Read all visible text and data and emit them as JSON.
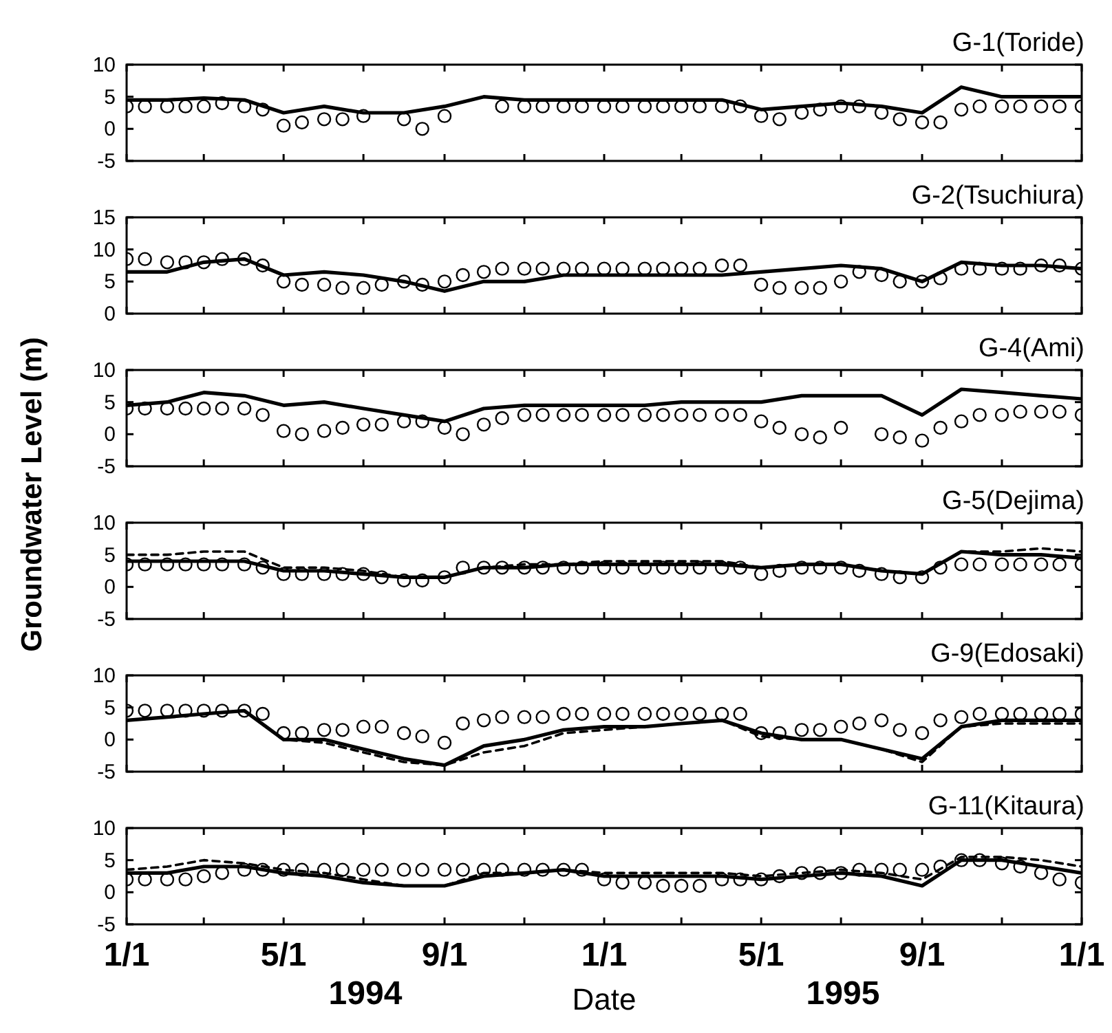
{
  "chart_data": [
    {
      "type": "line",
      "title": "G-1(Toride)",
      "xlim": [
        "1994-01-01",
        "1996-01-01"
      ],
      "ylim": [
        -5,
        10
      ],
      "yticks": [
        10,
        5,
        0,
        -5
      ],
      "tick_labels": "y",
      "xticks": [
        {
          "value": "1994-01-01",
          "label": null
        },
        {
          "value": "1994-03-01",
          "label": null
        },
        {
          "value": "1994-05-01",
          "label": null
        },
        {
          "value": "1994-07-01",
          "label": null
        },
        {
          "value": "1994-09-01",
          "label": null
        },
        {
          "value": "1994-11-01",
          "label": null
        },
        {
          "value": "1995-01-01",
          "label": null
        },
        {
          "value": "1995-03-01",
          "label": null
        },
        {
          "value": "1995-05-01",
          "label": null
        },
        {
          "value": "1995-07-01",
          "label": null
        },
        {
          "value": "1995-09-01",
          "label": null
        },
        {
          "value": "1995-11-01",
          "label": null
        },
        {
          "value": "1996-01-01",
          "label": null
        }
      ],
      "x": [
        "1994-01-01",
        "1994-01-15",
        "1994-02-01",
        "1994-02-15",
        "1994-03-01",
        "1994-03-15",
        "1994-04-01",
        "1994-04-15",
        "1994-05-01",
        "1994-05-15",
        "1994-06-01",
        "1994-06-15",
        "1994-07-01",
        "1994-08-01",
        "1994-08-15",
        "1994-09-01",
        "1994-10-15",
        "1994-11-01",
        "1994-11-15",
        "1994-12-01",
        "1994-12-15",
        "1995-01-01",
        "1995-01-15",
        "1995-02-01",
        "1995-02-15",
        "1995-03-01",
        "1995-03-15",
        "1995-04-01",
        "1995-04-15",
        "1995-05-01",
        "1995-05-15",
        "1995-06-01",
        "1995-06-15",
        "1995-07-01",
        "1995-07-15",
        "1995-08-01",
        "1995-08-15",
        "1995-09-01",
        "1995-09-15",
        "1995-10-01",
        "1995-10-15",
        "1995-11-01",
        "1995-11-15",
        "1995-12-01",
        "1995-12-15",
        "1996-01-01"
      ],
      "series": [
        {
          "type": "scatter",
          "marker": "circle",
          "color": "#000000",
          "values": [
            3.5,
            3.5,
            3.5,
            3.5,
            3.5,
            4,
            3.5,
            3,
            0.5,
            1,
            1.5,
            1.5,
            2,
            1.5,
            0,
            2,
            3.5,
            3.5,
            3.5,
            3.5,
            3.5,
            3.5,
            3.5,
            3.5,
            3.5,
            3.5,
            3.5,
            3.5,
            3.5,
            2,
            1.5,
            2.5,
            3,
            3.5,
            3.5,
            2.5,
            1.5,
            1,
            1,
            3,
            3.5,
            3.5,
            3.5,
            3.5,
            3.5,
            3.5
          ]
        },
        {
          "type": "line",
          "line_style": "solid",
          "color": "#000000",
          "x": [
            "1994-01-01",
            "1994-02-01",
            "1994-03-01",
            "1994-04-01",
            "1994-05-01",
            "1994-06-01",
            "1994-07-01",
            "1994-08-01",
            "1994-09-01",
            "1994-10-01",
            "1994-11-01",
            "1994-12-01",
            "1995-01-01",
            "1995-02-01",
            "1995-03-01",
            "1995-04-01",
            "1995-05-01",
            "1995-06-01",
            "1995-07-01",
            "1995-08-01",
            "1995-09-01",
            "1995-10-01",
            "1995-11-01",
            "1995-12-01",
            "1996-01-01"
          ],
          "values": [
            4.5,
            4.5,
            4.8,
            4.5,
            2.5,
            3.5,
            2.5,
            2.5,
            3.5,
            5,
            4.5,
            4.5,
            4.5,
            4.5,
            4.5,
            4.5,
            3,
            3.5,
            4,
            3.5,
            2.5,
            6.5,
            5,
            5,
            5
          ]
        }
      ]
    },
    {
      "type": "line",
      "title": "G-2(Tsuchiura)",
      "xlim": [
        "1994-01-01",
        "1996-01-01"
      ],
      "ylim": [
        0,
        15
      ],
      "yticks": [
        15,
        10,
        5,
        0
      ],
      "tick_labels": "y",
      "xticks": [
        {
          "value": "1994-01-01",
          "label": null
        },
        {
          "value": "1994-03-01",
          "label": null
        },
        {
          "value": "1994-05-01",
          "label": null
        },
        {
          "value": "1994-07-01",
          "label": null
        },
        {
          "value": "1994-09-01",
          "label": null
        },
        {
          "value": "1994-11-01",
          "label": null
        },
        {
          "value": "1995-01-01",
          "label": null
        },
        {
          "value": "1995-03-01",
          "label": null
        },
        {
          "value": "1995-05-01",
          "label": null
        },
        {
          "value": "1995-07-01",
          "label": null
        },
        {
          "value": "1995-09-01",
          "label": null
        },
        {
          "value": "1995-11-01",
          "label": null
        },
        {
          "value": "1996-01-01",
          "label": null
        }
      ],
      "x": [
        "1994-01-01",
        "1994-01-15",
        "1994-02-01",
        "1994-02-15",
        "1994-03-01",
        "1994-03-15",
        "1994-04-01",
        "1994-04-15",
        "1994-05-01",
        "1994-05-15",
        "1994-06-01",
        "1994-06-15",
        "1994-07-01",
        "1994-07-15",
        "1994-08-01",
        "1994-08-15",
        "1994-09-01",
        "1994-09-15",
        "1994-10-01",
        "1994-10-15",
        "1994-11-01",
        "1994-11-15",
        "1994-12-01",
        "1994-12-15",
        "1995-01-01",
        "1995-01-15",
        "1995-02-01",
        "1995-02-15",
        "1995-03-01",
        "1995-03-15",
        "1995-04-01",
        "1995-04-15",
        "1995-05-01",
        "1995-05-15",
        "1995-06-01",
        "1995-06-15",
        "1995-07-01",
        "1995-07-15",
        "1995-08-01",
        "1995-08-15",
        "1995-09-01",
        "1995-09-15",
        "1995-10-01",
        "1995-10-15",
        "1995-11-01",
        "1995-11-15",
        "1995-12-01",
        "1995-12-15",
        "1996-01-01"
      ],
      "series": [
        {
          "type": "scatter",
          "marker": "circle",
          "color": "#000000",
          "values": [
            8.5,
            8.5,
            8,
            8,
            8,
            8.5,
            8.5,
            7.5,
            5,
            4.5,
            4.5,
            4,
            4,
            4.5,
            5,
            4.5,
            5,
            6,
            6.5,
            7,
            7,
            7,
            7,
            7,
            7,
            7,
            7,
            7,
            7,
            7,
            7.5,
            7.5,
            4.5,
            4,
            4,
            4,
            5,
            6.5,
            6,
            5,
            5,
            5.5,
            7,
            7,
            7,
            7,
            7.5,
            7.5,
            7
          ]
        },
        {
          "type": "line",
          "line_style": "solid",
          "color": "#000000",
          "x": [
            "1994-01-01",
            "1994-02-01",
            "1994-03-01",
            "1994-04-01",
            "1994-05-01",
            "1994-06-01",
            "1994-07-01",
            "1994-08-01",
            "1994-09-01",
            "1994-10-01",
            "1994-11-01",
            "1994-12-01",
            "1995-01-01",
            "1995-02-01",
            "1995-03-01",
            "1995-04-01",
            "1995-05-01",
            "1995-06-01",
            "1995-07-01",
            "1995-08-01",
            "1995-09-01",
            "1995-10-01",
            "1995-11-01",
            "1995-12-01",
            "1996-01-01"
          ],
          "values": [
            6.5,
            6.5,
            8,
            8.5,
            6,
            6.5,
            6,
            5,
            3.5,
            5,
            5,
            6,
            6,
            6,
            6,
            6,
            6.5,
            7,
            7.5,
            7,
            5,
            8,
            7.5,
            7.5,
            7
          ]
        }
      ]
    },
    {
      "type": "line",
      "title": "G-4(Ami)",
      "xlim": [
        "1994-01-01",
        "1996-01-01"
      ],
      "ylim": [
        -5,
        10
      ],
      "yticks": [
        10,
        5,
        0,
        -5
      ],
      "tick_labels": "y",
      "xticks": [
        {
          "value": "1994-01-01",
          "label": null
        },
        {
          "value": "1994-03-01",
          "label": null
        },
        {
          "value": "1994-05-01",
          "label": null
        },
        {
          "value": "1994-07-01",
          "label": null
        },
        {
          "value": "1994-09-01",
          "label": null
        },
        {
          "value": "1994-11-01",
          "label": null
        },
        {
          "value": "1995-01-01",
          "label": null
        },
        {
          "value": "1995-03-01",
          "label": null
        },
        {
          "value": "1995-05-01",
          "label": null
        },
        {
          "value": "1995-07-01",
          "label": null
        },
        {
          "value": "1995-09-01",
          "label": null
        },
        {
          "value": "1995-11-01",
          "label": null
        },
        {
          "value": "1996-01-01",
          "label": null
        }
      ],
      "x": [
        "1994-01-01",
        "1994-01-15",
        "1994-02-01",
        "1994-02-15",
        "1994-03-01",
        "1994-03-15",
        "1994-04-01",
        "1994-04-15",
        "1994-05-01",
        "1994-05-15",
        "1994-06-01",
        "1994-06-15",
        "1994-07-01",
        "1994-07-15",
        "1994-08-01",
        "1994-08-15",
        "1994-09-01",
        "1994-09-15",
        "1994-10-01",
        "1994-10-15",
        "1994-11-01",
        "1994-11-15",
        "1994-12-01",
        "1994-12-15",
        "1995-01-01",
        "1995-01-15",
        "1995-02-01",
        "1995-02-15",
        "1995-03-01",
        "1995-03-15",
        "1995-04-01",
        "1995-04-15",
        "1995-05-01",
        "1995-05-15",
        "1995-06-01",
        "1995-06-15",
        "1995-07-01",
        "1995-08-01",
        "1995-08-15",
        "1995-09-01",
        "1995-09-15",
        "1995-10-01",
        "1995-10-15",
        "1995-11-01",
        "1995-11-15",
        "1995-12-01",
        "1995-12-15",
        "1996-01-01"
      ],
      "series": [
        {
          "type": "scatter",
          "marker": "circle",
          "color": "#000000",
          "values": [
            4,
            4,
            4,
            4,
            4,
            4,
            4,
            3,
            0.5,
            0,
            0.5,
            1,
            1.5,
            1.5,
            2,
            2,
            1,
            0,
            1.5,
            2.5,
            3,
            3,
            3,
            3,
            3,
            3,
            3,
            3,
            3,
            3,
            3,
            3,
            2,
            1,
            0,
            -0.5,
            1,
            0,
            -0.5,
            -1,
            1,
            2,
            3,
            3,
            3.5,
            3.5,
            3.5,
            3
          ]
        },
        {
          "type": "line",
          "line_style": "solid",
          "color": "#000000",
          "x": [
            "1994-01-01",
            "1994-02-01",
            "1994-03-01",
            "1994-04-01",
            "1994-05-01",
            "1994-06-01",
            "1994-07-01",
            "1994-08-01",
            "1994-09-01",
            "1994-10-01",
            "1994-11-01",
            "1994-12-01",
            "1995-01-01",
            "1995-02-01",
            "1995-03-01",
            "1995-04-01",
            "1995-05-01",
            "1995-06-01",
            "1995-07-01",
            "1995-08-01",
            "1995-09-01",
            "1995-10-01",
            "1995-11-01",
            "1995-12-01",
            "1996-01-01"
          ],
          "values": [
            4.5,
            5,
            6.5,
            6,
            4.5,
            5,
            4,
            3,
            2,
            4,
            4.5,
            4.5,
            4.5,
            4.5,
            5,
            5,
            5,
            6,
            6,
            6,
            3,
            7,
            6.5,
            6,
            5.5
          ]
        }
      ]
    },
    {
      "type": "line",
      "title": "G-5(Dejima)",
      "ylabel": "Groundwater Level (m)",
      "xlim": [
        "1994-01-01",
        "1996-01-01"
      ],
      "ylim": [
        -5,
        10
      ],
      "yticks": [
        10,
        5,
        0,
        -5
      ],
      "tick_labels": "y",
      "xticks": [
        {
          "value": "1994-01-01",
          "label": null
        },
        {
          "value": "1994-03-01",
          "label": null
        },
        {
          "value": "1994-05-01",
          "label": null
        },
        {
          "value": "1994-07-01",
          "label": null
        },
        {
          "value": "1994-09-01",
          "label": null
        },
        {
          "value": "1994-11-01",
          "label": null
        },
        {
          "value": "1995-01-01",
          "label": null
        },
        {
          "value": "1995-03-01",
          "label": null
        },
        {
          "value": "1995-05-01",
          "label": null
        },
        {
          "value": "1995-07-01",
          "label": null
        },
        {
          "value": "1995-09-01",
          "label": null
        },
        {
          "value": "1995-11-01",
          "label": null
        },
        {
          "value": "1996-01-01",
          "label": null
        }
      ],
      "x": [
        "1994-01-01",
        "1994-01-15",
        "1994-02-01",
        "1994-02-15",
        "1994-03-01",
        "1994-03-15",
        "1994-04-01",
        "1994-04-15",
        "1994-05-01",
        "1994-05-15",
        "1994-06-01",
        "1994-06-15",
        "1994-07-01",
        "1994-07-15",
        "1994-08-01",
        "1994-08-15",
        "1994-09-01",
        "1994-09-15",
        "1994-10-01",
        "1994-10-15",
        "1994-11-01",
        "1994-11-15",
        "1994-12-01",
        "1994-12-15",
        "1995-01-01",
        "1995-01-15",
        "1995-02-01",
        "1995-02-15",
        "1995-03-01",
        "1995-03-15",
        "1995-04-01",
        "1995-04-15",
        "1995-05-01",
        "1995-05-15",
        "1995-06-01",
        "1995-06-15",
        "1995-07-01",
        "1995-07-15",
        "1995-08-01",
        "1995-08-15",
        "1995-09-01",
        "1995-09-15",
        "1995-10-01",
        "1995-10-15",
        "1995-11-01",
        "1995-11-15",
        "1995-12-01",
        "1995-12-15",
        "1996-01-01"
      ],
      "series": [
        {
          "type": "scatter",
          "marker": "circle",
          "color": "#000000",
          "values": [
            3.5,
            3.5,
            3.5,
            3.5,
            3.5,
            3.5,
            3.5,
            3,
            2,
            2,
            2,
            2,
            2,
            1.5,
            1,
            1,
            1.5,
            3,
            3,
            3,
            3,
            3,
            3,
            3,
            3,
            3,
            3,
            3,
            3,
            3,
            3,
            3,
            2,
            2.5,
            3,
            3,
            3,
            2.5,
            2,
            1.5,
            1.5,
            3,
            3.5,
            3.5,
            3.5,
            3.5,
            3.5,
            3.5,
            3.5
          ]
        },
        {
          "type": "line",
          "line_style": "solid",
          "color": "#000000",
          "x": [
            "1994-01-01",
            "1994-02-01",
            "1994-03-01",
            "1994-04-01",
            "1994-05-01",
            "1994-06-01",
            "1994-07-01",
            "1994-08-01",
            "1994-09-01",
            "1994-10-01",
            "1994-11-01",
            "1994-12-01",
            "1995-01-01",
            "1995-02-01",
            "1995-03-01",
            "1995-04-01",
            "1995-05-01",
            "1995-06-01",
            "1995-07-01",
            "1995-08-01",
            "1995-09-01",
            "1995-10-01",
            "1995-11-01",
            "1995-12-01",
            "1996-01-01"
          ],
          "values": [
            4,
            4,
            4,
            4,
            2.5,
            2.5,
            2,
            1.5,
            1.5,
            3,
            3,
            3.5,
            3.5,
            3.5,
            3.5,
            3.5,
            3,
            3.5,
            3.5,
            2.5,
            2,
            5.5,
            5,
            5,
            4.5
          ]
        },
        {
          "type": "line",
          "line_style": "dashed",
          "color": "#000000",
          "x": [
            "1994-01-01",
            "1994-02-01",
            "1994-03-01",
            "1994-04-01",
            "1994-05-01",
            "1994-06-01",
            "1994-07-01",
            "1994-08-01",
            "1994-09-01",
            "1994-10-01",
            "1994-11-01",
            "1994-12-01",
            "1995-01-01",
            "1995-02-01",
            "1995-03-01",
            "1995-04-01",
            "1995-05-01",
            "1995-06-01",
            "1995-07-01",
            "1995-08-01",
            "1995-09-01",
            "1995-10-01",
            "1995-11-01",
            "1995-12-01",
            "1996-01-01"
          ],
          "values": [
            5,
            5,
            5.5,
            5.5,
            3,
            3,
            2.5,
            1.5,
            1.5,
            3,
            3.5,
            3.5,
            4,
            4,
            4,
            4,
            3,
            3.5,
            3.5,
            2.5,
            2,
            5.5,
            5.5,
            6,
            5.5
          ]
        }
      ]
    },
    {
      "type": "line",
      "title": "G-9(Edosaki)",
      "xlim": [
        "1994-01-01",
        "1996-01-01"
      ],
      "ylim": [
        -5,
        10
      ],
      "yticks": [
        10,
        5,
        0,
        -5
      ],
      "tick_labels": "y",
      "xticks": [
        {
          "value": "1994-01-01",
          "label": null
        },
        {
          "value": "1994-03-01",
          "label": null
        },
        {
          "value": "1994-05-01",
          "label": null
        },
        {
          "value": "1994-07-01",
          "label": null
        },
        {
          "value": "1994-09-01",
          "label": null
        },
        {
          "value": "1994-11-01",
          "label": null
        },
        {
          "value": "1995-01-01",
          "label": null
        },
        {
          "value": "1995-03-01",
          "label": null
        },
        {
          "value": "1995-05-01",
          "label": null
        },
        {
          "value": "1995-07-01",
          "label": null
        },
        {
          "value": "1995-09-01",
          "label": null
        },
        {
          "value": "1995-11-01",
          "label": null
        },
        {
          "value": "1996-01-01",
          "label": null
        }
      ],
      "x": [
        "1994-01-01",
        "1994-01-15",
        "1994-02-01",
        "1994-02-15",
        "1994-03-01",
        "1994-03-15",
        "1994-04-01",
        "1994-04-15",
        "1994-05-01",
        "1994-05-15",
        "1994-06-01",
        "1994-06-15",
        "1994-07-01",
        "1994-07-15",
        "1994-08-01",
        "1994-08-15",
        "1994-09-01",
        "1994-09-15",
        "1994-10-01",
        "1994-10-15",
        "1994-11-01",
        "1994-11-15",
        "1994-12-01",
        "1994-12-15",
        "1995-01-01",
        "1995-01-15",
        "1995-02-01",
        "1995-02-15",
        "1995-03-01",
        "1995-03-15",
        "1995-04-01",
        "1995-04-15",
        "1995-05-01",
        "1995-05-15",
        "1995-06-01",
        "1995-06-15",
        "1995-07-01",
        "1995-07-15",
        "1995-08-01",
        "1995-08-15",
        "1995-09-01",
        "1995-09-15",
        "1995-10-01",
        "1995-10-15",
        "1995-11-01",
        "1995-11-15",
        "1995-12-01",
        "1995-12-15",
        "1996-01-01"
      ],
      "series": [
        {
          "type": "scatter",
          "marker": "circle",
          "color": "#000000",
          "values": [
            4.5,
            4.5,
            4.5,
            4.5,
            4.5,
            4.5,
            4.5,
            4,
            1,
            1,
            1.5,
            1.5,
            2,
            2,
            1,
            0.5,
            -0.5,
            2.5,
            3,
            3.5,
            3.5,
            3.5,
            4,
            4,
            4,
            4,
            4,
            4,
            4,
            4,
            4,
            4,
            1,
            1,
            1.5,
            1.5,
            2,
            2.5,
            3,
            1.5,
            1,
            3,
            3.5,
            4,
            4,
            4,
            4,
            4,
            4
          ]
        },
        {
          "type": "line",
          "line_style": "solid",
          "color": "#000000",
          "x": [
            "1994-01-01",
            "1994-02-01",
            "1994-03-01",
            "1994-04-01",
            "1994-05-01",
            "1994-06-01",
            "1994-07-01",
            "1994-08-01",
            "1994-09-01",
            "1994-10-01",
            "1994-11-01",
            "1994-12-01",
            "1995-01-01",
            "1995-02-01",
            "1995-03-01",
            "1995-04-01",
            "1995-05-01",
            "1995-06-01",
            "1995-07-01",
            "1995-08-01",
            "1995-09-01",
            "1995-10-01",
            "1995-11-01",
            "1995-12-01",
            "1996-01-01"
          ],
          "values": [
            3,
            3.5,
            4,
            4.5,
            0,
            0,
            -1.5,
            -3,
            -4,
            -1,
            0,
            1.5,
            2,
            2,
            2.5,
            3,
            1,
            0,
            0,
            -1.5,
            -3,
            2,
            3,
            3,
            3
          ]
        },
        {
          "type": "line",
          "line_style": "dashed",
          "color": "#000000",
          "x": [
            "1994-01-01",
            "1994-02-01",
            "1994-03-01",
            "1994-04-01",
            "1994-05-01",
            "1994-06-01",
            "1994-07-01",
            "1994-08-01",
            "1994-09-01",
            "1994-10-01",
            "1994-11-01",
            "1994-12-01",
            "1995-01-01",
            "1995-02-01",
            "1995-03-01",
            "1995-04-01",
            "1995-05-01",
            "1995-06-01",
            "1995-07-01",
            "1995-08-01",
            "1995-09-01",
            "1995-10-01",
            "1995-11-01",
            "1995-12-01",
            "1996-01-01"
          ],
          "values": [
            3,
            3.5,
            4,
            4.5,
            0,
            -0.5,
            -2,
            -3.5,
            -4,
            -2,
            -1,
            1,
            1.5,
            2,
            2.5,
            3,
            0.5,
            0,
            0,
            -1.5,
            -3.5,
            2,
            2.5,
            2.5,
            2.5
          ]
        }
      ]
    },
    {
      "type": "line",
      "title": "G-11(Kitaura)",
      "xlabel": "Date",
      "annotations": [
        "1994",
        "1995"
      ],
      "xlim": [
        "1994-01-01",
        "1996-01-01"
      ],
      "ylim": [
        -5,
        10
      ],
      "yticks": [
        10,
        5,
        0,
        -5
      ],
      "xticks": [
        {
          "value": "1994-01-01",
          "label": "1/1"
        },
        {
          "value": "1994-03-01",
          "label": null
        },
        {
          "value": "1994-05-01",
          "label": "5/1"
        },
        {
          "value": "1994-07-01",
          "label": null
        },
        {
          "value": "1994-09-01",
          "label": "9/1"
        },
        {
          "value": "1994-11-01",
          "label": null
        },
        {
          "value": "1995-01-01",
          "label": "1/1"
        },
        {
          "value": "1995-03-01",
          "label": null
        },
        {
          "value": "1995-05-01",
          "label": "5/1"
        },
        {
          "value": "1995-07-01",
          "label": null
        },
        {
          "value": "1995-09-01",
          "label": "9/1"
        },
        {
          "value": "1995-11-01",
          "label": null
        },
        {
          "value": "1996-01-01",
          "label": "1/1"
        }
      ],
      "x": [
        "1994-01-01",
        "1994-01-15",
        "1994-02-01",
        "1994-02-15",
        "1994-03-01",
        "1994-03-15",
        "1994-04-01",
        "1994-04-15",
        "1994-05-01",
        "1994-05-15",
        "1994-06-01",
        "1994-06-15",
        "1994-07-01",
        "1994-07-15",
        "1994-08-01",
        "1994-08-15",
        "1994-09-01",
        "1994-09-15",
        "1994-10-01",
        "1994-10-15",
        "1994-11-01",
        "1994-11-15",
        "1994-12-01",
        "1994-12-15",
        "1995-01-01",
        "1995-01-15",
        "1995-02-01",
        "1995-02-15",
        "1995-03-01",
        "1995-03-15",
        "1995-04-01",
        "1995-04-15",
        "1995-05-01",
        "1995-05-15",
        "1995-06-01",
        "1995-06-15",
        "1995-07-01",
        "1995-07-15",
        "1995-08-01",
        "1995-08-15",
        "1995-09-01",
        "1995-09-15",
        "1995-10-01",
        "1995-10-15",
        "1995-11-01",
        "1995-11-15",
        "1995-12-01",
        "1995-12-15",
        "1996-01-01"
      ],
      "series": [
        {
          "type": "scatter",
          "marker": "circle",
          "color": "#000000",
          "values": [
            2,
            2,
            2,
            2,
            2.5,
            3,
            3.5,
            3.5,
            3.5,
            3.5,
            3.5,
            3.5,
            3.5,
            3.5,
            3.5,
            3.5,
            3.5,
            3.5,
            3.5,
            3.5,
            3.5,
            3.5,
            3.5,
            3.5,
            2,
            1.5,
            1.5,
            1,
            1,
            1,
            2,
            2,
            2,
            2.5,
            3,
            3,
            3,
            3.5,
            3.5,
            3.5,
            3.5,
            4,
            5,
            5,
            4.5,
            4,
            3,
            2,
            1.5
          ]
        },
        {
          "type": "line",
          "line_style": "solid",
          "color": "#000000",
          "x": [
            "1994-01-01",
            "1994-02-01",
            "1994-03-01",
            "1994-04-01",
            "1994-05-01",
            "1994-06-01",
            "1994-07-01",
            "1994-08-01",
            "1994-09-01",
            "1994-10-01",
            "1994-11-01",
            "1994-12-01",
            "1995-01-01",
            "1995-02-01",
            "1995-03-01",
            "1995-04-01",
            "1995-05-01",
            "1995-06-01",
            "1995-07-01",
            "1995-08-01",
            "1995-09-01",
            "1995-10-01",
            "1995-11-01",
            "1995-12-01",
            "1996-01-01"
          ],
          "values": [
            3,
            3,
            4,
            4,
            3,
            2.5,
            1.5,
            1,
            1,
            2.5,
            3,
            3.5,
            2.5,
            2.5,
            2.5,
            2.5,
            2,
            2.5,
            3,
            2.5,
            1,
            5,
            5,
            4,
            3
          ]
        },
        {
          "type": "line",
          "line_style": "dashed",
          "color": "#000000",
          "x": [
            "1994-01-01",
            "1994-02-01",
            "1994-03-01",
            "1994-04-01",
            "1994-05-01",
            "1994-06-01",
            "1994-07-01",
            "1994-08-01",
            "1994-09-01",
            "1994-10-01",
            "1994-11-01",
            "1994-12-01",
            "1995-01-01",
            "1995-02-01",
            "1995-03-01",
            "1995-04-01",
            "1995-05-01",
            "1995-06-01",
            "1995-07-01",
            "1995-08-01",
            "1995-09-01",
            "1995-10-01",
            "1995-11-01",
            "1995-12-01",
            "1996-01-01"
          ],
          "values": [
            3.5,
            4,
            5,
            4.5,
            3.5,
            3,
            2,
            1,
            1,
            3,
            3,
            3.5,
            3,
            3,
            3,
            3,
            2.5,
            3,
            3.5,
            3,
            2,
            5.5,
            5.5,
            5,
            4
          ]
        }
      ]
    }
  ]
}
